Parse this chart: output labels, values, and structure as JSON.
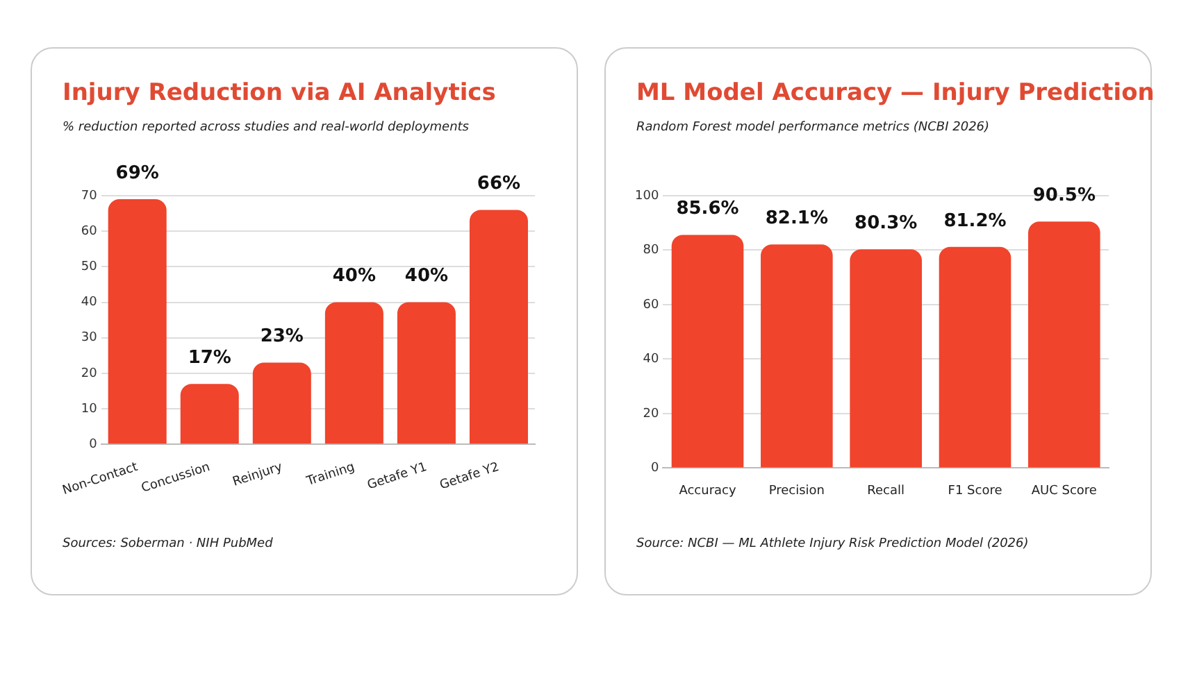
{
  "chart_data": [
    {
      "type": "bar",
      "title": "Injury Reduction via AI Analytics",
      "subtitle": "% reduction reported across studies and real-world deployments",
      "categories": [
        "Non-Contact",
        "Concussion",
        "Reinjury",
        "Training",
        "Getafe Y1",
        "Getafe Y2"
      ],
      "values": [
        69,
        17,
        23,
        40,
        40,
        66
      ],
      "color": "#f0442c",
      "ylim": [
        0,
        70
      ],
      "yticks": [
        0,
        10,
        20,
        30,
        40,
        50,
        60,
        70
      ],
      "grid": "y",
      "value_labels": [
        "69%",
        "17%",
        "23%",
        "40%",
        "40%",
        "66%"
      ],
      "annotations": [
        "Sources: Soberman · NIH PubMed"
      ]
    },
    {
      "type": "bar",
      "title": "ML Model Accuracy — Injury Prediction",
      "subtitle": "Random Forest model performance metrics (NCBI 2026)",
      "categories": [
        "Accuracy",
        "Precision",
        "Recall",
        "F1 Score",
        "AUC Score"
      ],
      "values": [
        85.6,
        82.1,
        80.3,
        81.2,
        90.5
      ],
      "color": "#f0442c",
      "ylim": [
        0,
        100
      ],
      "yticks": [
        0,
        20,
        40,
        60,
        80,
        100
      ],
      "grid": "y",
      "value_labels": [
        "85.6%",
        "82.1%",
        "80.3%",
        "81.2%",
        "90.5%"
      ],
      "annotations": [
        "Source: NCBI — ML Athlete Injury Risk Prediction Model (2026)"
      ]
    }
  ]
}
